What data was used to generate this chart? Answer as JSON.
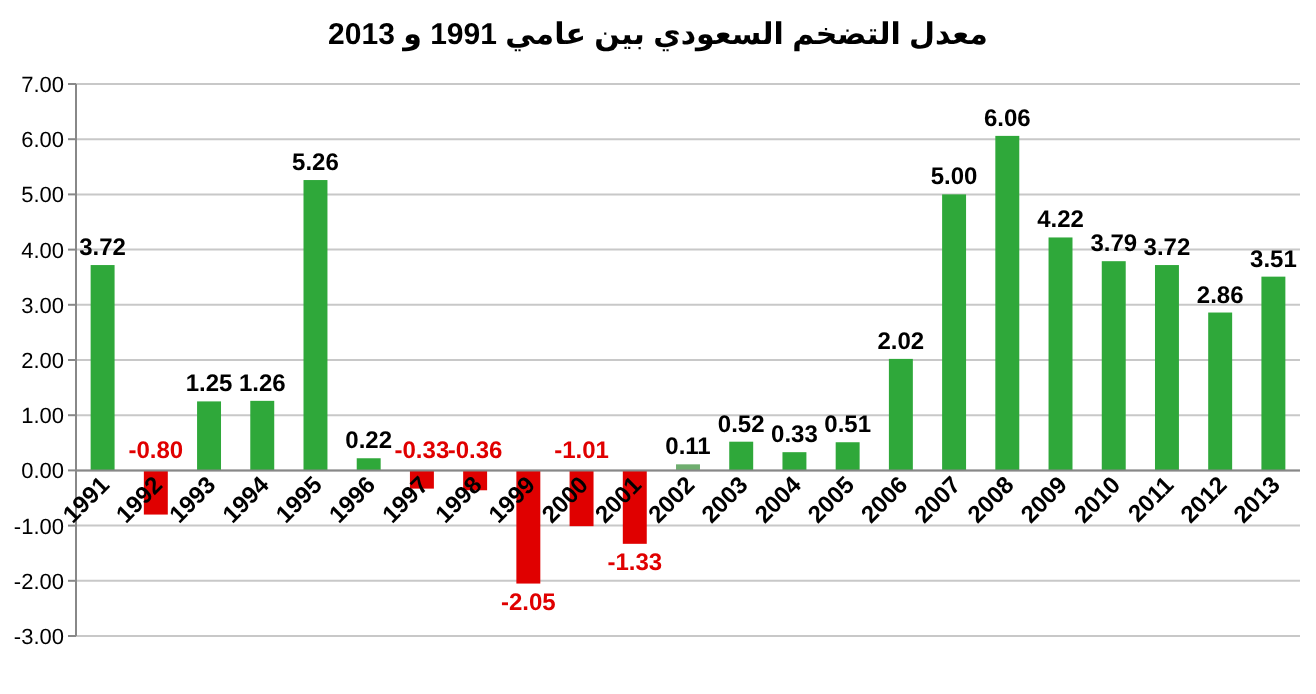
{
  "chart_data": {
    "type": "bar",
    "title": "معدل التضخم السعودي بين عامي 1991 و 2013",
    "categories": [
      "1991",
      "1992",
      "1993",
      "1994",
      "1995",
      "1996",
      "1997",
      "1998",
      "1999",
      "2000",
      "2001",
      "2002",
      "2003",
      "2004",
      "2005",
      "2006",
      "2007",
      "2008",
      "2009",
      "2010",
      "2011",
      "2012",
      "2013"
    ],
    "values": [
      3.72,
      -0.8,
      1.25,
      1.26,
      5.26,
      0.22,
      -0.33,
      -0.36,
      -2.05,
      -1.01,
      -1.33,
      0.11,
      0.52,
      0.33,
      0.51,
      2.02,
      5.0,
      6.06,
      4.22,
      3.79,
      3.72,
      2.86,
      3.51
    ],
    "value_labels": [
      "3.72",
      "-0.80",
      "1.25",
      "1.26",
      "5.26",
      "0.22",
      "-0.33",
      "-0.36",
      "-2.05",
      "-1.01",
      "-1.33",
      "0.11",
      "0.52",
      "0.33",
      "0.51",
      "2.02",
      "5.00",
      "6.06",
      "4.22",
      "3.79",
      "3.72",
      "2.86",
      "3.51"
    ],
    "colors": [
      "#2fa83a",
      "#e00000",
      "#2fa83a",
      "#2fa83a",
      "#2fa83a",
      "#2fa83a",
      "#e00000",
      "#e00000",
      "#e00000",
      "#e00000",
      "#e00000",
      "#6fae6f",
      "#2fa83a",
      "#2fa83a",
      "#2fa83a",
      "#2fa83a",
      "#2fa83a",
      "#2fa83a",
      "#2fa83a",
      "#2fa83a",
      "#2fa83a",
      "#2fa83a",
      "#2fa83a"
    ],
    "ylim": [
      -3,
      7
    ],
    "yticks": [
      {
        "value": -3,
        "label": "-3.00"
      },
      {
        "value": -2,
        "label": "-2.00"
      },
      {
        "value": -1,
        "label": "-1.00"
      },
      {
        "value": 0,
        "label": "0.00"
      },
      {
        "value": 1,
        "label": "1.00"
      },
      {
        "value": 2,
        "label": "2.00"
      },
      {
        "value": 3,
        "label": "3.00"
      },
      {
        "value": 4,
        "label": "4.00"
      },
      {
        "value": 5,
        "label": "5.00"
      },
      {
        "value": 6,
        "label": "6.00"
      },
      {
        "value": 7,
        "label": "7.00"
      }
    ],
    "grid": "y"
  }
}
